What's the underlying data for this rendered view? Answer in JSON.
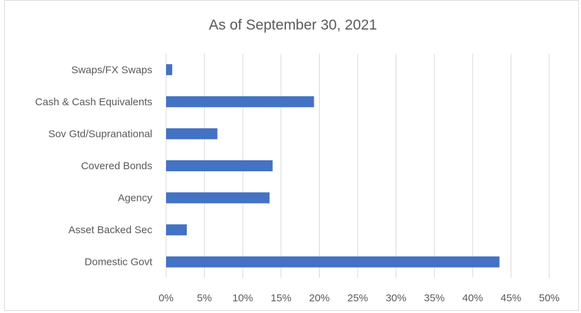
{
  "chart_data": {
    "type": "bar",
    "orientation": "horizontal",
    "title": "As of September 30, 2021",
    "categories": [
      "Swaps/FX Swaps",
      "Cash & Cash Equivalents",
      "Sov Gtd/Supranational",
      "Covered Bonds",
      "Agency",
      "Asset Backed Sec",
      "Domestic Govt"
    ],
    "values": [
      0.8,
      19.3,
      6.7,
      13.9,
      13.5,
      2.7,
      43.5
    ],
    "xlim": [
      0,
      50
    ],
    "xticks": [
      0,
      5,
      10,
      15,
      20,
      25,
      30,
      35,
      40,
      45,
      50
    ],
    "xtick_labels": [
      "0%",
      "5%",
      "10%",
      "15%",
      "20%",
      "25%",
      "30%",
      "35%",
      "40%",
      "45%",
      "50%"
    ],
    "xlabel": "",
    "ylabel": "",
    "grid": "vertical",
    "legend": "none",
    "bar_color": "#4472c4"
  }
}
